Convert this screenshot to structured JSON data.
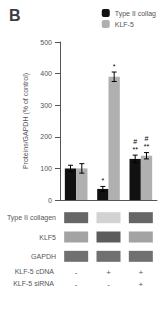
{
  "chart_data": {
    "type": "bar",
    "title": "B",
    "ylabel": "Proteins/GAPDH (% of control)",
    "category_rows": [
      {
        "name": "KLF-5 cDNA",
        "labels": [
          "-",
          "+",
          "+"
        ]
      },
      {
        "name": "KLF-5 siRNA",
        "labels": [
          "-",
          "-",
          "+"
        ]
      }
    ],
    "series": [
      {
        "name": "Type II collag",
        "color": "#111111",
        "values": [
          100,
          35,
          130
        ],
        "errors": [
          10,
          8,
          12
        ],
        "annotations": [
          null,
          "*",
          "#\n**"
        ]
      },
      {
        "name": "KLF-5",
        "color": "#b0b0b0",
        "values": [
          100,
          390,
          140
        ],
        "errors": [
          15,
          15,
          10
        ],
        "annotations": [
          null,
          "*",
          "#\n**"
        ]
      }
    ],
    "ylim": [
      0,
      500
    ],
    "yticks": [
      0,
      100,
      200,
      300,
      400,
      500
    ],
    "grid": false,
    "legend": "upper right",
    "blot": {
      "rows": [
        {
          "name": "Type II collagen",
          "colors": [
            "#404040",
            "#c7c7c7",
            "#404040"
          ]
        },
        {
          "name": "KLF5",
          "colors": [
            "#8c8c8c",
            "#333333",
            "#8c8c8c"
          ]
        },
        {
          "name": "GAPDH",
          "colors": [
            "#4c4c4c",
            "#4c4c4c",
            "#4c4c4c"
          ]
        }
      ]
    }
  }
}
